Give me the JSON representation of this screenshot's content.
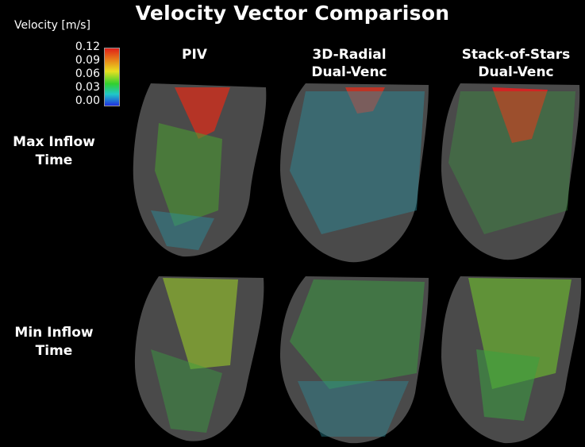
{
  "title": "Velocity Vector Comparison",
  "legend": {
    "title": "Velocity [m/s]",
    "ticks": [
      "0.12",
      "0.09",
      "0.06",
      "0.03",
      "0.00"
    ]
  },
  "columns": [
    "PIV",
    "3D-Radial\nDual-Venc",
    "Stack-of-Stars\nDual-Venc"
  ],
  "rows": [
    "Max Inflow\nTime",
    "Min Inflow\nTime"
  ],
  "colors": {
    "background": "#000000",
    "heart": "#4a4a4a",
    "high": "#e02020",
    "mid": "#30d030",
    "low": "#20c8c8"
  }
}
